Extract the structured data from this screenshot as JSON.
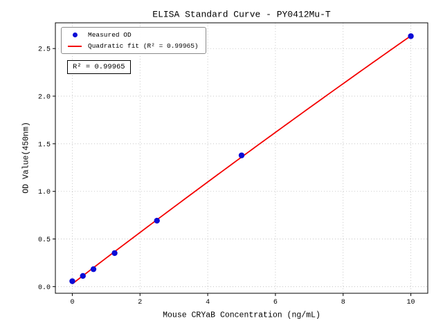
{
  "chart_data": {
    "type": "scatter",
    "title": "ELISA Standard Curve - PY0412Mu-T",
    "xlabel": "Mouse CRYaB Concentration (ng/mL)",
    "ylabel": "OD Value(450nm)",
    "x": [
      0,
      0.3125,
      0.625,
      1.25,
      2.5,
      5,
      10
    ],
    "y": [
      0.057,
      0.112,
      0.183,
      0.352,
      0.692,
      1.378,
      2.63
    ],
    "series": [
      {
        "name": "Measured OD",
        "type": "scatter",
        "color": "#0b0bd6"
      },
      {
        "name": "Quadratic fit (R² = 0.99965)",
        "type": "line",
        "color": "#f40000"
      }
    ],
    "xticks": [
      0,
      2,
      4,
      6,
      8,
      10
    ],
    "yticks": [
      0.0,
      0.5,
      1.0,
      1.5,
      2.0,
      2.5
    ],
    "xlim": [
      -0.5,
      10.5
    ],
    "ylim": [
      -0.07,
      2.77
    ],
    "fit_range": [
      0,
      10
    ],
    "annotation": "R² = 0.99965",
    "r_squared": 0.99965,
    "grid": true,
    "legend_position": "upper left"
  }
}
